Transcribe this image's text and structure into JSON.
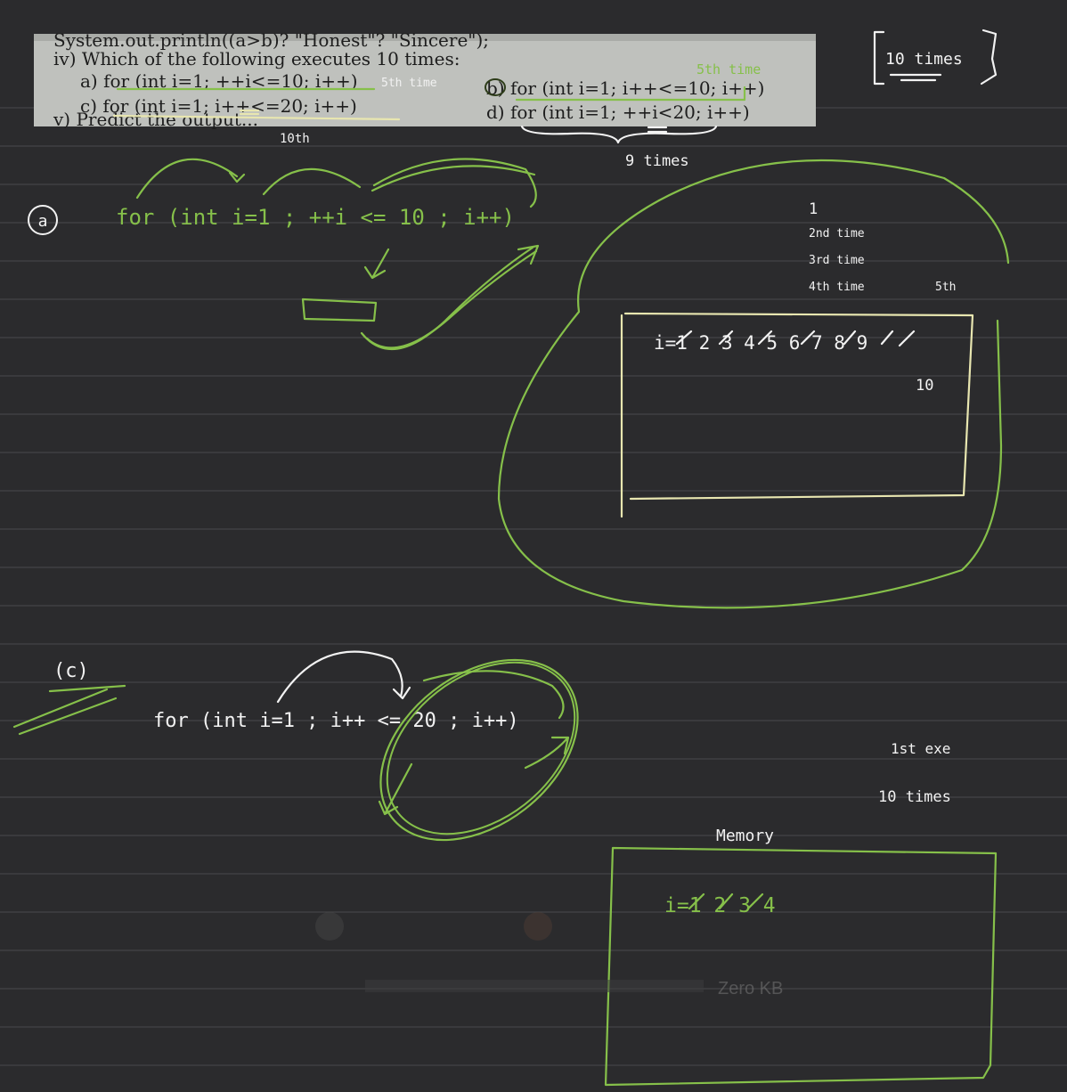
{
  "clipping": {
    "line_top": "System.out.println((a>b)? \"Honest\"? \"Sincere\");",
    "question": "iv) Which of the following executes 10 times:",
    "option_a": "a) for (int i=1; ++i<=10; i++)",
    "option_b": "b) for (int i=1; i++<=10; i++)",
    "option_c": "c) for (int i=1; i++<=20; i++)",
    "option_d": "d) for (int i=1; ++i<20; i++)",
    "cutoff": "v) Predict the output..."
  },
  "annotations": {
    "ten_times_box": "10 times",
    "fifth_time_a": "5th time",
    "fifth_time_b": "5th time",
    "tenth": "10th",
    "nine_times": "9 times",
    "label_a": "a",
    "loop_a": "for (int i=1 ; ++i <= 10 ; i++)",
    "trace_first": "1",
    "trace_second": "2nd time",
    "trace_third": "3rd time",
    "trace_fourth": "4th time",
    "trace_fifth": "5th",
    "memory_a": "i=1 2 3 4 5 6 7 8 9",
    "memory_a_end": "10",
    "label_c": "(c)",
    "loop_c": "for (int i=1 ; i++ <= 20 ; i++)",
    "first_exec": "1st exe",
    "ten_times_c": "10 times",
    "memory_label": "Memory",
    "memory_c": "i=1 2 3 4"
  },
  "faded_overlay": {
    "size_text": "Zero KB"
  },
  "colors": {
    "background": "#2b2b2d",
    "ink_green": "#86c04a",
    "ink_yellow": "#e8e6b0",
    "ink_white": "#f2f2f2",
    "paper": "#bfc1bd"
  }
}
